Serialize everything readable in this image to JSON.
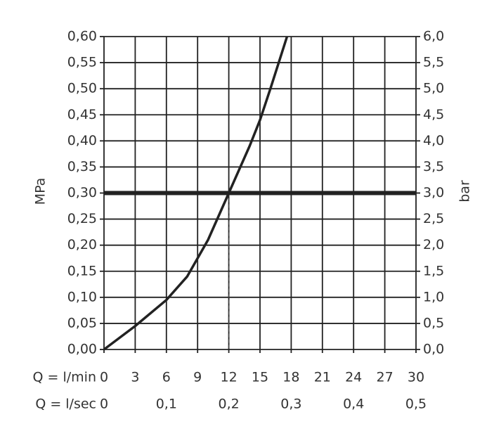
{
  "chart_data": {
    "type": "line",
    "x_label": "Q = l/min",
    "x2_label": "Q = l/sec",
    "y_label": "MPa",
    "y2_label": "bar",
    "xlim": [
      0,
      30
    ],
    "xticks": [
      0,
      3,
      6,
      9,
      12,
      15,
      18,
      21,
      24,
      27,
      30
    ],
    "x2lim": [
      0,
      0.5
    ],
    "x2ticks": [
      0,
      {
        "value": 0.1,
        "label": "0,1"
      },
      {
        "value": 0.2,
        "label": "0,2"
      },
      {
        "value": 0.3,
        "label": "0,3"
      },
      {
        "value": 0.4,
        "label": "0,4"
      },
      {
        "value": 0.5,
        "label": "0,5"
      }
    ],
    "ylim": [
      0,
      0.6
    ],
    "yticks": [
      {
        "value": 0,
        "label": "0,00"
      },
      {
        "value": 0.05,
        "label": "0,05"
      },
      {
        "value": 0.1,
        "label": "0,10"
      },
      {
        "value": 0.15,
        "label": "0,15"
      },
      {
        "value": 0.2,
        "label": "0,20"
      },
      {
        "value": 0.25,
        "label": "0,25"
      },
      {
        "value": 0.3,
        "label": "0,30"
      },
      {
        "value": 0.35,
        "label": "0,35"
      },
      {
        "value": 0.4,
        "label": "0,40"
      },
      {
        "value": 0.45,
        "label": "0,45"
      },
      {
        "value": 0.5,
        "label": "0,50"
      },
      {
        "value": 0.55,
        "label": "0,55"
      },
      {
        "value": 0.6,
        "label": "0,60"
      }
    ],
    "y2lim": [
      0,
      6
    ],
    "y2ticks": [
      {
        "value": 0,
        "label": "0,0"
      },
      {
        "value": 0.5,
        "label": "0,5"
      },
      {
        "value": 1,
        "label": "1,0"
      },
      {
        "value": 1.5,
        "label": "1,5"
      },
      {
        "value": 2,
        "label": "2,0"
      },
      {
        "value": 2.5,
        "label": "2,5"
      },
      {
        "value": 3,
        "label": "3,0"
      },
      {
        "value": 3.5,
        "label": "3,5"
      },
      {
        "value": 4,
        "label": "4,0"
      },
      {
        "value": 4.5,
        "label": "4,5"
      },
      {
        "value": 5,
        "label": "5,0"
      },
      {
        "value": 5.5,
        "label": "5,5"
      },
      {
        "value": 6,
        "label": "6,0"
      }
    ],
    "grid": true,
    "hline": 0.3,
    "vline_x": 12,
    "series": [
      {
        "color": "#222222",
        "x": [
          0,
          3,
          6,
          8,
          9,
          10,
          12,
          14,
          15,
          16,
          17.6
        ],
        "values": [
          0,
          0.045,
          0.095,
          0.14,
          0.175,
          0.21,
          0.3,
          0.39,
          0.44,
          0.5,
          0.6
        ]
      }
    ]
  }
}
